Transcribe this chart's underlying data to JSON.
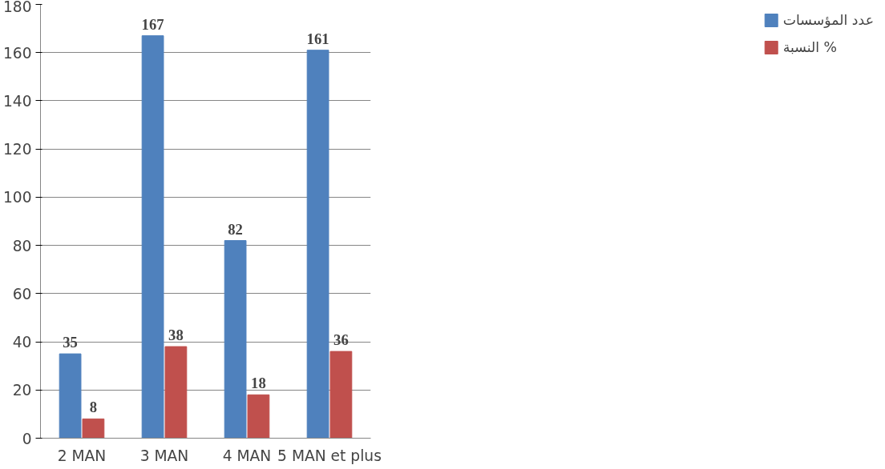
{
  "chart_data": {
    "type": "bar",
    "categories": [
      "2 MAN",
      "3 MAN",
      "4 MAN",
      "5 MAN et plus"
    ],
    "series": [
      {
        "name": "عدد المؤسسات",
        "color": "#4f81bd",
        "values": [
          35,
          167,
          82,
          161
        ]
      },
      {
        "name": "النسبة %",
        "color": "#c0504d",
        "values": [
          8,
          38,
          18,
          36
        ]
      }
    ],
    "ylim": [
      0,
      180
    ],
    "yticks": [
      0,
      20,
      40,
      60,
      80,
      100,
      120,
      140,
      160,
      180
    ],
    "grid": "y",
    "legend": "right",
    "data_labels": true
  }
}
